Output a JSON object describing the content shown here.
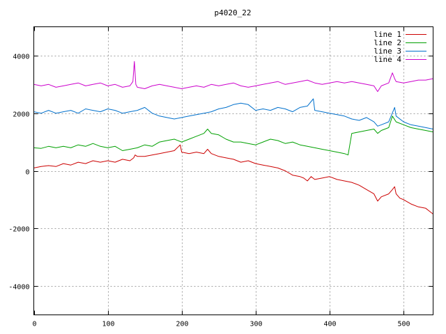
{
  "chart_data": {
    "type": "line",
    "title": "p4020_22",
    "xlabel": "",
    "ylabel": "",
    "xlim": [
      0,
      540
    ],
    "ylim": [
      -5000,
      5000
    ],
    "xticks": [
      0,
      100,
      200,
      300,
      400,
      500
    ],
    "yticks": [
      -4000,
      -2000,
      0,
      2000,
      4000
    ],
    "grid": true,
    "legend_position": "top-right",
    "series": [
      {
        "name": "line 1",
        "color": "#cc0000",
        "x": [
          0,
          10,
          20,
          30,
          40,
          50,
          60,
          70,
          80,
          90,
          100,
          110,
          120,
          130,
          135,
          137,
          140,
          150,
          160,
          170,
          180,
          190,
          198,
          200,
          210,
          220,
          230,
          235,
          240,
          250,
          260,
          270,
          280,
          290,
          300,
          310,
          320,
          330,
          340,
          350,
          360,
          365,
          370,
          375,
          380,
          390,
          400,
          410,
          420,
          430,
          440,
          450,
          460,
          465,
          470,
          480,
          485,
          488,
          490,
          495,
          500,
          510,
          520,
          530,
          535,
          540
        ],
        "y": [
          100,
          150,
          180,
          150,
          250,
          200,
          300,
          250,
          350,
          300,
          350,
          300,
          400,
          350,
          450,
          550,
          500,
          500,
          550,
          600,
          650,
          700,
          900,
          650,
          600,
          650,
          600,
          750,
          600,
          500,
          450,
          400,
          300,
          350,
          250,
          200,
          150,
          100,
          0,
          -150,
          -200,
          -250,
          -350,
          -200,
          -300,
          -250,
          -200,
          -300,
          -350,
          -400,
          -500,
          -650,
          -800,
          -1050,
          -900,
          -800,
          -650,
          -550,
          -800,
          -950,
          -1000,
          -1150,
          -1250,
          -1300,
          -1400,
          -1500
        ]
      },
      {
        "name": "line 2",
        "color": "#00a000",
        "x": [
          0,
          10,
          20,
          30,
          40,
          50,
          60,
          70,
          80,
          90,
          100,
          110,
          120,
          130,
          140,
          150,
          160,
          170,
          180,
          190,
          200,
          210,
          220,
          230,
          235,
          240,
          250,
          260,
          270,
          280,
          290,
          300,
          310,
          320,
          330,
          340,
          350,
          360,
          370,
          380,
          390,
          400,
          410,
          420,
          425,
          430,
          440,
          450,
          460,
          465,
          470,
          480,
          485,
          490,
          500,
          510,
          520,
          530,
          540
        ],
        "y": [
          800,
          780,
          850,
          800,
          850,
          800,
          900,
          850,
          950,
          850,
          800,
          850,
          700,
          750,
          800,
          900,
          850,
          1000,
          1050,
          1100,
          1000,
          1100,
          1200,
          1300,
          1450,
          1300,
          1250,
          1100,
          1000,
          1000,
          950,
          900,
          1000,
          1100,
          1050,
          950,
          1000,
          900,
          850,
          800,
          750,
          700,
          650,
          600,
          550,
          1300,
          1350,
          1400,
          1450,
          1300,
          1400,
          1500,
          1900,
          1700,
          1600,
          1500,
          1450,
          1400,
          1350
        ]
      },
      {
        "name": "line 3",
        "color": "#0070cc",
        "x": [
          0,
          10,
          20,
          30,
          40,
          50,
          60,
          70,
          80,
          90,
          100,
          110,
          120,
          130,
          140,
          150,
          160,
          170,
          180,
          190,
          200,
          210,
          220,
          230,
          240,
          250,
          260,
          270,
          280,
          290,
          300,
          310,
          320,
          330,
          340,
          350,
          360,
          370,
          378,
          380,
          390,
          400,
          410,
          420,
          430,
          440,
          450,
          460,
          465,
          470,
          480,
          488,
          490,
          500,
          510,
          520,
          530,
          540
        ],
        "y": [
          2050,
          2000,
          2100,
          2000,
          2050,
          2100,
          2000,
          2150,
          2100,
          2050,
          2150,
          2100,
          2000,
          2050,
          2100,
          2200,
          2000,
          1900,
          1850,
          1800,
          1850,
          1900,
          1950,
          2000,
          2050,
          2150,
          2200,
          2300,
          2350,
          2300,
          2100,
          2150,
          2100,
          2200,
          2150,
          2050,
          2200,
          2250,
          2500,
          2100,
          2050,
          2000,
          1950,
          1900,
          1800,
          1750,
          1850,
          1700,
          1550,
          1600,
          1700,
          2200,
          1900,
          1700,
          1600,
          1550,
          1500,
          1450
        ]
      },
      {
        "name": "line 4",
        "color": "#cc00cc",
        "x": [
          0,
          10,
          20,
          30,
          40,
          50,
          60,
          70,
          80,
          90,
          100,
          110,
          120,
          130,
          134,
          136,
          138,
          140,
          150,
          160,
          170,
          180,
          190,
          200,
          210,
          220,
          230,
          240,
          250,
          260,
          270,
          280,
          290,
          300,
          310,
          320,
          330,
          340,
          350,
          360,
          370,
          380,
          390,
          400,
          410,
          420,
          430,
          440,
          450,
          460,
          465,
          470,
          480,
          485,
          488,
          490,
          500,
          510,
          520,
          530,
          540
        ],
        "y": [
          3000,
          2950,
          3000,
          2900,
          2950,
          3000,
          3050,
          2950,
          3000,
          3050,
          2950,
          3000,
          2900,
          2950,
          3100,
          3800,
          3000,
          2900,
          2850,
          2950,
          3000,
          2950,
          2900,
          2850,
          2900,
          2950,
          2900,
          3000,
          2950,
          3000,
          3050,
          2950,
          2900,
          2950,
          3000,
          3050,
          3100,
          3000,
          3050,
          3100,
          3150,
          3050,
          3000,
          3050,
          3100,
          3050,
          3100,
          3050,
          3000,
          2950,
          2750,
          2950,
          3050,
          3400,
          3200,
          3100,
          3050,
          3100,
          3150,
          3150,
          3200
        ]
      }
    ]
  }
}
